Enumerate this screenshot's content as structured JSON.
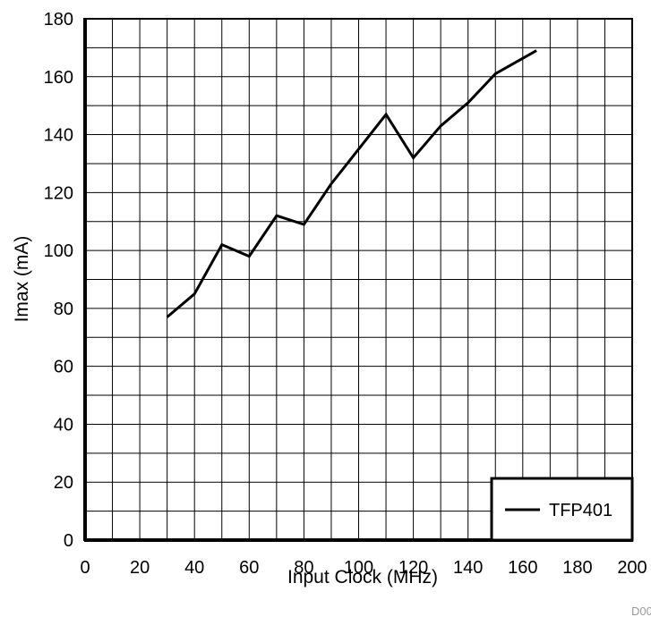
{
  "chart_data": {
    "type": "line",
    "title": "",
    "xlabel": "Input Clock (MHz)",
    "ylabel": "Imax (mA)",
    "xlim": [
      0,
      200
    ],
    "ylim": [
      0,
      180
    ],
    "x_ticks": [
      "0",
      "20",
      "40",
      "60",
      "80",
      "100",
      "120",
      "140",
      "160",
      "180",
      "200"
    ],
    "y_ticks": [
      "0",
      "20",
      "40",
      "60",
      "80",
      "100",
      "120",
      "140",
      "160",
      "180"
    ],
    "grid": true,
    "legend_position": "bottom-right",
    "series": [
      {
        "name": "TFP401",
        "color": "#000000",
        "x": [
          30,
          40,
          50,
          60,
          70,
          80,
          90,
          100,
          110,
          120,
          130,
          140,
          150,
          165
        ],
        "y": [
          77,
          85,
          102,
          98,
          112,
          109,
          123,
          135,
          147,
          132,
          143,
          151,
          161,
          169
        ]
      }
    ],
    "figure_id": "D00"
  }
}
